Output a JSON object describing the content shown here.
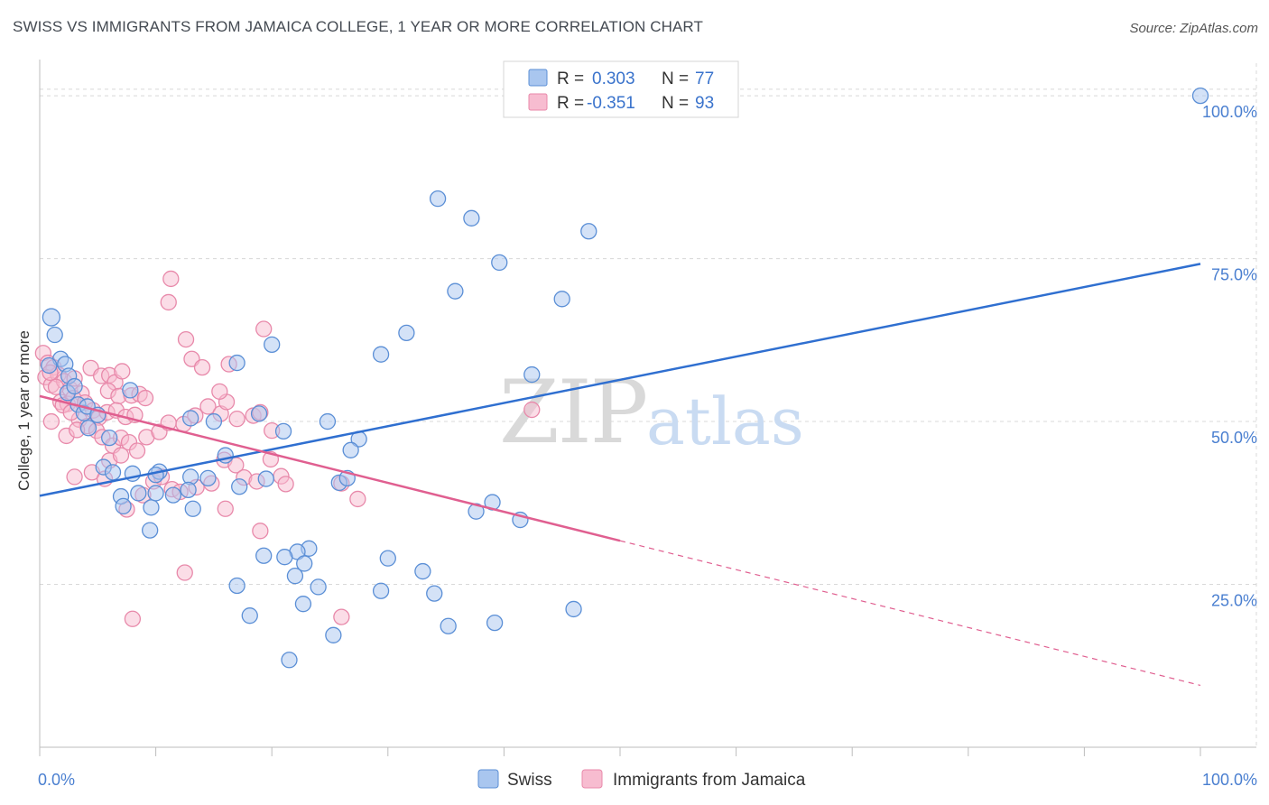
{
  "title": "SWISS VS IMMIGRANTS FROM JAMAICA COLLEGE, 1 YEAR OR MORE CORRELATION CHART",
  "source": "Source: ZipAtlas.com",
  "watermark": {
    "zip": "ZIP",
    "atlas": "atlas"
  },
  "colors": {
    "swiss_fill": "#a9c6ef",
    "swiss_stroke": "#5b8fd6",
    "swiss_line": "#2f6fd0",
    "jamaica_fill": "#f7bcd0",
    "jamaica_stroke": "#e889aa",
    "jamaica_line": "#e05f90",
    "grid": "#d8d8d8",
    "axis_text": "#4a7fd0"
  },
  "legend": {
    "r_label": "R =",
    "n_label": "N =",
    "series": [
      {
        "r_value": "0.303",
        "n_value": "77"
      },
      {
        "r_value": "-0.351",
        "n_value": "93"
      }
    ]
  },
  "chart_data": {
    "type": "scatter",
    "title": "SWISS VS IMMIGRANTS FROM JAMAICA COLLEGE, 1 YEAR OR MORE CORRELATION CHART",
    "xlabel": "",
    "ylabel": "College, 1 year or more",
    "xlim": [
      0,
      100
    ],
    "ylim": [
      0,
      105
    ],
    "x_tick_labels": [
      "0.0%",
      "100.0%"
    ],
    "y_ticks": [
      25,
      50,
      75,
      100
    ],
    "y_tick_labels": [
      "25.0%",
      "50.0%",
      "75.0%",
      "100.0%"
    ],
    "grid": true,
    "legend_position": "top-center",
    "series": [
      {
        "name": "Swiss",
        "r": 0.303,
        "n": 77,
        "trend": {
          "x0": 0,
          "y0": 38.6,
          "x1": 100,
          "y1": 74.2
        },
        "points": [
          [
            1.0,
            66
          ],
          [
            1.3,
            63.3
          ],
          [
            1.8,
            59.6
          ],
          [
            2.2,
            58.8
          ],
          [
            0.8,
            58.6
          ],
          [
            2.4,
            54.4
          ],
          [
            3.3,
            52.6
          ],
          [
            3.8,
            51.3
          ],
          [
            4.1,
            52.3
          ],
          [
            5.0,
            51.0
          ],
          [
            7.8,
            54.8
          ],
          [
            6.0,
            47.5
          ],
          [
            5.5,
            43.0
          ],
          [
            6.3,
            42.2
          ],
          [
            8.0,
            42.0
          ],
          [
            10.3,
            42.3
          ],
          [
            10.0,
            41.8
          ],
          [
            13.0,
            41.5
          ],
          [
            14.5,
            41.3
          ],
          [
            17.2,
            40.0
          ],
          [
            16.0,
            44.8
          ],
          [
            13.0,
            50.5
          ],
          [
            15.0,
            50.0
          ],
          [
            18.9,
            51.2
          ],
          [
            17.0,
            59.0
          ],
          [
            9.6,
            36.8
          ],
          [
            7.0,
            38.5
          ],
          [
            8.5,
            39.0
          ],
          [
            10.0,
            39.0
          ],
          [
            11.5,
            38.7
          ],
          [
            12.8,
            39.5
          ],
          [
            13.2,
            36.6
          ],
          [
            7.2,
            37.0
          ],
          [
            9.5,
            33.3
          ],
          [
            20.0,
            61.8
          ],
          [
            19.5,
            41.2
          ],
          [
            21.0,
            48.5
          ],
          [
            24.8,
            50.0
          ],
          [
            25.8,
            40.6
          ],
          [
            26.5,
            41.3
          ],
          [
            27.5,
            47.3
          ],
          [
            26.8,
            45.6
          ],
          [
            29.4,
            60.3
          ],
          [
            31.6,
            63.6
          ],
          [
            34.3,
            84.2
          ],
          [
            35.8,
            70.0
          ],
          [
            37.2,
            81.2
          ],
          [
            39.6,
            74.4
          ],
          [
            42.4,
            57.2
          ],
          [
            45.0,
            68.8
          ],
          [
            47.3,
            79.2
          ],
          [
            39.0,
            37.6
          ],
          [
            37.6,
            36.2
          ],
          [
            41.4,
            34.9
          ],
          [
            23.2,
            30.5
          ],
          [
            22.2,
            30.0
          ],
          [
            22.8,
            28.2
          ],
          [
            19.3,
            29.4
          ],
          [
            21.1,
            29.2
          ],
          [
            22.0,
            26.3
          ],
          [
            30.0,
            29.0
          ],
          [
            33.0,
            27.0
          ],
          [
            29.4,
            24.0
          ],
          [
            34.0,
            23.6
          ],
          [
            24.0,
            24.6
          ],
          [
            22.7,
            22.0
          ],
          [
            17.0,
            24.8
          ],
          [
            18.1,
            20.2
          ],
          [
            25.3,
            17.2
          ],
          [
            21.5,
            13.4
          ],
          [
            35.2,
            18.6
          ],
          [
            39.2,
            19.1
          ],
          [
            46.0,
            21.2
          ],
          [
            100.0,
            100.0
          ],
          [
            2.5,
            57.0
          ],
          [
            3.0,
            55.4
          ],
          [
            4.2,
            49.0
          ]
        ]
      },
      {
        "name": "Immigrants from Jamaica",
        "r": -0.351,
        "n": 93,
        "trend": {
          "x0": 0,
          "y0": 53.9,
          "x1": 50,
          "y1": 31.7,
          "dash_x1": 100,
          "dash_y1": 9.5
        },
        "points": [
          [
            0.3,
            60.5
          ],
          [
            0.7,
            59.0
          ],
          [
            1.2,
            58.3
          ],
          [
            0.5,
            56.8
          ],
          [
            1.0,
            55.6
          ],
          [
            1.6,
            57.2
          ],
          [
            2.1,
            56.2
          ],
          [
            2.6,
            55.0
          ],
          [
            3.0,
            56.6
          ],
          [
            3.6,
            54.3
          ],
          [
            1.8,
            53.0
          ],
          [
            2.4,
            52.7
          ],
          [
            0.9,
            57.5
          ],
          [
            1.4,
            55.3
          ],
          [
            2.9,
            53.6
          ],
          [
            3.9,
            52.9
          ],
          [
            4.4,
            58.2
          ],
          [
            5.3,
            57.0
          ],
          [
            6.0,
            57.1
          ],
          [
            6.5,
            56.0
          ],
          [
            7.1,
            57.7
          ],
          [
            5.9,
            54.7
          ],
          [
            6.8,
            53.9
          ],
          [
            7.9,
            54.0
          ],
          [
            8.6,
            54.2
          ],
          [
            9.1,
            53.6
          ],
          [
            4.6,
            51.7
          ],
          [
            5.1,
            50.6
          ],
          [
            5.8,
            51.4
          ],
          [
            6.6,
            51.7
          ],
          [
            7.4,
            50.7
          ],
          [
            8.2,
            51.0
          ],
          [
            3.4,
            50.3
          ],
          [
            4.1,
            49.3
          ],
          [
            4.9,
            48.6
          ],
          [
            5.4,
            47.6
          ],
          [
            6.3,
            46.3
          ],
          [
            7.0,
            47.5
          ],
          [
            7.7,
            46.8
          ],
          [
            8.4,
            45.5
          ],
          [
            9.2,
            47.6
          ],
          [
            10.3,
            48.4
          ],
          [
            11.1,
            49.8
          ],
          [
            12.4,
            49.6
          ],
          [
            13.4,
            50.9
          ],
          [
            14.5,
            52.3
          ],
          [
            15.6,
            51.2
          ],
          [
            16.1,
            53.0
          ],
          [
            17.0,
            50.4
          ],
          [
            12.6,
            62.6
          ],
          [
            13.1,
            59.6
          ],
          [
            14.0,
            58.3
          ],
          [
            15.5,
            54.6
          ],
          [
            16.3,
            58.8
          ],
          [
            11.3,
            71.9
          ],
          [
            11.1,
            68.3
          ],
          [
            19.3,
            64.2
          ],
          [
            18.4,
            50.9
          ],
          [
            19.0,
            51.4
          ],
          [
            20.0,
            48.6
          ],
          [
            15.9,
            44.1
          ],
          [
            16.9,
            43.3
          ],
          [
            17.6,
            41.4
          ],
          [
            18.7,
            40.8
          ],
          [
            19.9,
            44.2
          ],
          [
            20.8,
            41.6
          ],
          [
            21.2,
            40.4
          ],
          [
            9.8,
            40.8
          ],
          [
            10.5,
            41.5
          ],
          [
            11.4,
            39.6
          ],
          [
            12.1,
            39.2
          ],
          [
            8.9,
            38.7
          ],
          [
            7.5,
            36.5
          ],
          [
            13.5,
            39.9
          ],
          [
            14.8,
            40.5
          ],
          [
            16.0,
            36.6
          ],
          [
            19.0,
            33.2
          ],
          [
            27.4,
            38.1
          ],
          [
            26.0,
            40.5
          ],
          [
            42.4,
            51.8
          ],
          [
            12.5,
            26.8
          ],
          [
            26.0,
            20.0
          ],
          [
            8.0,
            19.7
          ],
          [
            3.0,
            41.5
          ],
          [
            4.5,
            42.2
          ],
          [
            5.6,
            41.2
          ],
          [
            2.3,
            47.8
          ],
          [
            3.2,
            48.7
          ],
          [
            1.0,
            50.0
          ],
          [
            2.0,
            52.5
          ],
          [
            6.0,
            44.0
          ],
          [
            7.0,
            44.8
          ],
          [
            2.7,
            51.4
          ]
        ]
      }
    ]
  }
}
